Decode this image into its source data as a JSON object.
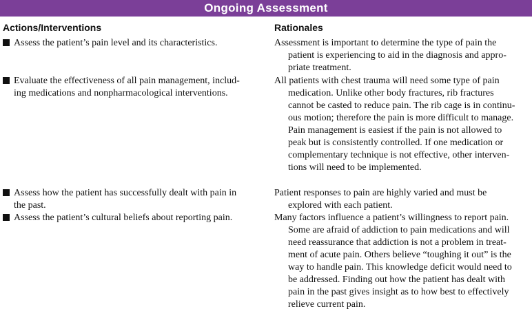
{
  "title": "Ongoing Assessment",
  "columns": {
    "actions": "Actions/Interventions",
    "rationales": "Rationales"
  },
  "rows": [
    {
      "action": [
        "Assess the patient’s pain level and its characteristics."
      ],
      "rationale": [
        "Assessment is important to determine the type of pain the",
        "patient is experiencing to aid in the diagnosis and appro-",
        "priate treatment."
      ]
    },
    {
      "action": [
        "Evaluate the effectiveness of all pain management, includ-",
        "ing medications and nonpharmacological interventions."
      ],
      "rationale": [
        "All patients with chest trauma will need some type of pain",
        "medication. Unlike other body fractures, rib fractures",
        "cannot be casted to reduce pain. The rib cage is in continu-",
        "ous motion; therefore the pain is more difficult to manage.",
        "Pain management is easiest if the pain is not allowed to",
        "peak but is consistently controlled. If one medication or",
        "complementary technique is not effective, other interven-",
        "tions will need to be implemented."
      ]
    },
    {
      "action": [
        "Assess how the patient has successfully dealt with pain in",
        "the past."
      ],
      "rationale": [
        "Patient responses to pain are highly varied and must be",
        "explored with each patient."
      ]
    },
    {
      "action": [
        "Assess the patient’s cultural beliefs about reporting pain."
      ],
      "rationale": [
        "Many factors influence a patient’s willingness to report pain.",
        "Some are afraid of addiction to pain medications and will",
        "need reassurance that addiction is not a problem in treat-",
        "ment of acute pain. Others believe “toughing it out” is the",
        "way to handle pain. This knowledge deficit would need to",
        "be addressed. Finding out how the patient has dealt with",
        "pain in the past gives insight as to how best to effectively",
        "relieve current pain."
      ]
    }
  ]
}
